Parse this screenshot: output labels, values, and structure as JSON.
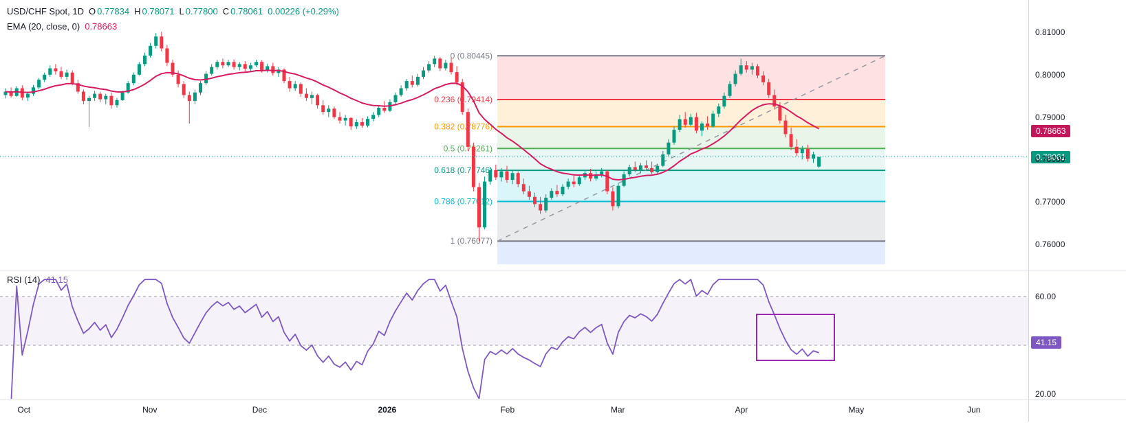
{
  "legend": {
    "title": "USD/CHF Spot, 1D",
    "o": {
      "k": "O",
      "v": "0.77834"
    },
    "h": {
      "k": "H",
      "v": "0.78071"
    },
    "l": {
      "k": "L",
      "v": "0.77800"
    },
    "c": {
      "k": "C",
      "v": "0.78061"
    },
    "change": "0.00226 (+0.29%)",
    "ema_title": "EMA (20, close, 0)",
    "ema_value": "0.78663",
    "rsi_title": "RSI (14)",
    "rsi_value": "41.15"
  },
  "colors": {
    "up": "#089981",
    "down": "#F23645",
    "ema_line": "#D81B60",
    "ema_badge": "#C2185B",
    "price_badge": "#089981",
    "rsi_line": "#7E57C2",
    "rsi_badge": "#7E57C2",
    "annotation_box": "#9C27B0",
    "trend_line": "#9598A1",
    "axis_text": "#131722",
    "band_fill": "rgba(126,87,194,0.08)"
  },
  "price_axis": {
    "ticks": [
      "0.81000",
      "0.80000",
      "0.79000",
      "0.78000",
      "0.77000",
      "0.76000"
    ],
    "ema_badge": "0.78663",
    "price_badge": "0.78061"
  },
  "rsi_axis": {
    "ticks": [
      {
        "label": "60.00",
        "v": 60
      },
      {
        "label": "20.00",
        "v": 20
      }
    ],
    "badge": "41.15",
    "badge_value": 41.15
  },
  "time_axis": {
    "labels": [
      {
        "label": "Oct",
        "i": 3.3
      },
      {
        "label": "Nov",
        "i": 25.9
      },
      {
        "label": "Dec",
        "i": 45.6
      },
      {
        "label": "2026",
        "i": 68.5,
        "bold": true
      },
      {
        "label": "Feb",
        "i": 90.1
      },
      {
        "label": "Mar",
        "i": 109.9
      },
      {
        "label": "Apr",
        "i": 132.1
      },
      {
        "label": "May",
        "i": 152.7
      },
      {
        "label": "Jun",
        "i": 173.8
      }
    ]
  },
  "fib": {
    "levels": [
      {
        "label": "0 (0.80445)",
        "value": 0,
        "price": 0.80445,
        "color": "#787B86",
        "fill_below": "rgba(242,54,69,0.15)"
      },
      {
        "label": "0.236 (0.79414)",
        "value": 0.236,
        "price": 0.79414,
        "color": "#F23645",
        "fill_below": "rgba(255,152,0,0.15)"
      },
      {
        "label": "0.382 (0.78776)",
        "value": 0.382,
        "price": 0.78776,
        "color": "#FF9800",
        "fill_below": "rgba(76,175,80,0.13)"
      },
      {
        "label": "0.5 (0.78261)",
        "value": 0.5,
        "price": 0.78261,
        "color": "#4CAF50",
        "fill_below": "rgba(8,153,129,0.09)"
      },
      {
        "label": "0.618 (0.77746)",
        "value": 0.618,
        "price": 0.77746,
        "color": "#089981",
        "fill_below": "rgba(0,188,212,0.14)"
      },
      {
        "label": "0.786 (0.77012)",
        "value": 0.786,
        "price": 0.77012,
        "color": "#00BCD4",
        "fill_below": "rgba(120,123,134,0.16)"
      },
      {
        "label": "1 (0.76077)",
        "value": 1,
        "price": 0.76077,
        "color": "#787B86",
        "fill_below": "rgba(41,98,255,0.13)"
      }
    ],
    "extension_bottom_price": 0.7553,
    "trend_line": {
      "style": "dashed",
      "from_price": 0.76077,
      "to_price": 0.80445
    }
  },
  "chart_data": [
    {
      "type": "candlestick",
      "title": "USD/CHF Spot, 1D",
      "ylim": [
        0.754,
        0.8176
      ],
      "y_ticks": [
        0.81,
        0.8,
        0.79,
        0.78,
        0.77,
        0.76
      ],
      "x_categories": [
        "Oct",
        "Nov",
        "Dec",
        "2026",
        "Feb",
        "Mar",
        "Apr",
        "May",
        "Jun"
      ],
      "grid": false,
      "last_price": 0.78061,
      "overlays": {
        "ema20": {
          "period": 20,
          "source": "close",
          "offset": 0,
          "last_value": 0.78663
        },
        "fib_levels": [
          0.80445,
          0.79414,
          0.78776,
          0.78261,
          0.77746,
          0.77012,
          0.76077
        ]
      },
      "candles": [
        [
          0.7952,
          0.7968,
          0.7944,
          0.796
        ],
        [
          0.796,
          0.797,
          0.7946,
          0.795
        ],
        [
          0.795,
          0.7973,
          0.7948,
          0.7968
        ],
        [
          0.7968,
          0.7975,
          0.794,
          0.7946
        ],
        [
          0.7946,
          0.796,
          0.7938,
          0.7955
        ],
        [
          0.7955,
          0.7976,
          0.795,
          0.797
        ],
        [
          0.797,
          0.7992,
          0.7965,
          0.7988
        ],
        [
          0.7988,
          0.8005,
          0.7982,
          0.8
        ],
        [
          0.8,
          0.8022,
          0.7995,
          0.8015
        ],
        [
          0.8015,
          0.8025,
          0.8,
          0.8008
        ],
        [
          0.8008,
          0.8018,
          0.799,
          0.7995
        ],
        [
          0.7995,
          0.8012,
          0.7988,
          0.8005
        ],
        [
          0.8005,
          0.801,
          0.7975,
          0.798
        ],
        [
          0.798,
          0.7988,
          0.7955,
          0.796
        ],
        [
          0.796,
          0.7965,
          0.793,
          0.7938
        ],
        [
          0.7938,
          0.795,
          0.7877,
          0.7945
        ],
        [
          0.7945,
          0.7962,
          0.7938,
          0.7955
        ],
        [
          0.7955,
          0.796,
          0.7935,
          0.7942
        ],
        [
          0.7942,
          0.7955,
          0.793,
          0.795
        ],
        [
          0.795,
          0.7958,
          0.792,
          0.7928
        ],
        [
          0.7928,
          0.7945,
          0.7922,
          0.794
        ],
        [
          0.794,
          0.7962,
          0.7938,
          0.7958
        ],
        [
          0.7958,
          0.7985,
          0.7955,
          0.798
        ],
        [
          0.798,
          0.8005,
          0.7975,
          0.8
        ],
        [
          0.8,
          0.803,
          0.7998,
          0.8025
        ],
        [
          0.8025,
          0.8052,
          0.802,
          0.8045
        ],
        [
          0.8045,
          0.8075,
          0.804,
          0.8068
        ],
        [
          0.8068,
          0.8098,
          0.8062,
          0.809
        ],
        [
          0.809,
          0.8101,
          0.8055,
          0.8062
        ],
        [
          0.8062,
          0.807,
          0.802,
          0.8028
        ],
        [
          0.8028,
          0.8035,
          0.7995,
          0.8
        ],
        [
          0.8,
          0.801,
          0.797,
          0.7978
        ],
        [
          0.7978,
          0.7985,
          0.7945,
          0.7952
        ],
        [
          0.7952,
          0.796,
          0.7885,
          0.7938
        ],
        [
          0.7938,
          0.7965,
          0.793,
          0.7958
        ],
        [
          0.7958,
          0.7985,
          0.7952,
          0.798
        ],
        [
          0.798,
          0.8008,
          0.7975,
          0.8002
        ],
        [
          0.8002,
          0.8025,
          0.7998,
          0.8018
        ],
        [
          0.8018,
          0.8035,
          0.8012,
          0.803
        ],
        [
          0.803,
          0.8038,
          0.8015,
          0.8022
        ],
        [
          0.8022,
          0.8035,
          0.8018,
          0.803
        ],
        [
          0.803,
          0.8036,
          0.8012,
          0.8018
        ],
        [
          0.8018,
          0.803,
          0.801,
          0.8025
        ],
        [
          0.8025,
          0.8032,
          0.8008,
          0.8014
        ],
        [
          0.8014,
          0.8028,
          0.8008,
          0.8022
        ],
        [
          0.8022,
          0.8035,
          0.8018,
          0.803
        ],
        [
          0.803,
          0.8034,
          0.8005,
          0.801
        ],
        [
          0.801,
          0.8026,
          0.8005,
          0.802
        ],
        [
          0.802,
          0.8028,
          0.7998,
          0.8004
        ],
        [
          0.8004,
          0.8018,
          0.7995,
          0.8012
        ],
        [
          0.8012,
          0.8015,
          0.798,
          0.7985
        ],
        [
          0.7985,
          0.7995,
          0.796,
          0.7968
        ],
        [
          0.7968,
          0.7985,
          0.7962,
          0.7978
        ],
        [
          0.7978,
          0.7982,
          0.7948,
          0.7955
        ],
        [
          0.7955,
          0.7968,
          0.7938,
          0.7945
        ],
        [
          0.7945,
          0.796,
          0.793,
          0.7952
        ],
        [
          0.7952,
          0.7955,
          0.792,
          0.7928
        ],
        [
          0.7928,
          0.794,
          0.7905,
          0.7912
        ],
        [
          0.7912,
          0.7928,
          0.79,
          0.792
        ],
        [
          0.792,
          0.7925,
          0.7895,
          0.79
        ],
        [
          0.79,
          0.7912,
          0.7885,
          0.7892
        ],
        [
          0.7892,
          0.7905,
          0.788,
          0.7898
        ],
        [
          0.7898,
          0.79,
          0.787,
          0.7878
        ],
        [
          0.7878,
          0.7895,
          0.7872,
          0.7888
        ],
        [
          0.7888,
          0.7898,
          0.7875,
          0.788
        ],
        [
          0.788,
          0.7902,
          0.7876,
          0.7896
        ],
        [
          0.7896,
          0.7912,
          0.789,
          0.7905
        ],
        [
          0.7905,
          0.7928,
          0.79,
          0.7922
        ],
        [
          0.7922,
          0.7938,
          0.791,
          0.7915
        ],
        [
          0.7915,
          0.7942,
          0.7912,
          0.7935
        ],
        [
          0.7935,
          0.7958,
          0.793,
          0.7952
        ],
        [
          0.7952,
          0.7975,
          0.7948,
          0.7968
        ],
        [
          0.7968,
          0.799,
          0.7962,
          0.7985
        ],
        [
          0.7985,
          0.7998,
          0.797,
          0.7976
        ],
        [
          0.7976,
          0.8002,
          0.7972,
          0.7995
        ],
        [
          0.7995,
          0.8018,
          0.799,
          0.801
        ],
        [
          0.801,
          0.8032,
          0.8005,
          0.8025
        ],
        [
          0.8025,
          0.80445,
          0.8018,
          0.8038
        ],
        [
          0.8038,
          0.8042,
          0.8008,
          0.8015
        ],
        [
          0.8015,
          0.8035,
          0.801,
          0.8028
        ],
        [
          0.8028,
          0.804,
          0.8,
          0.8006
        ],
        [
          0.8006,
          0.802,
          0.7975,
          0.7982
        ],
        [
          0.7982,
          0.799,
          0.7905,
          0.7912
        ],
        [
          0.7912,
          0.792,
          0.782,
          0.783
        ],
        [
          0.783,
          0.784,
          0.7725,
          0.7735
        ],
        [
          0.7735,
          0.7745,
          0.76077,
          0.764
        ],
        [
          0.764,
          0.776,
          0.7635,
          0.7748
        ],
        [
          0.7748,
          0.7782,
          0.774,
          0.7775
        ],
        [
          0.7775,
          0.7788,
          0.7752,
          0.7758
        ],
        [
          0.7758,
          0.778,
          0.7748,
          0.7772
        ],
        [
          0.7772,
          0.7785,
          0.7745,
          0.7752
        ],
        [
          0.7752,
          0.7775,
          0.7742,
          0.7768
        ],
        [
          0.7768,
          0.7772,
          0.7735,
          0.7742
        ],
        [
          0.7742,
          0.7755,
          0.7718,
          0.7725
        ],
        [
          0.7725,
          0.7738,
          0.7705,
          0.7712
        ],
        [
          0.7712,
          0.7722,
          0.7688,
          0.7695
        ],
        [
          0.7695,
          0.7712,
          0.7672,
          0.768
        ],
        [
          0.768,
          0.7718,
          0.7675,
          0.771
        ],
        [
          0.771,
          0.7732,
          0.7705,
          0.7726
        ],
        [
          0.7726,
          0.774,
          0.7712,
          0.7718
        ],
        [
          0.7718,
          0.7742,
          0.7714,
          0.7736
        ],
        [
          0.7736,
          0.7755,
          0.773,
          0.7748
        ],
        [
          0.7748,
          0.7762,
          0.7735,
          0.7742
        ],
        [
          0.7742,
          0.7765,
          0.7738,
          0.7758
        ],
        [
          0.7758,
          0.7775,
          0.7752,
          0.7768
        ],
        [
          0.7768,
          0.7778,
          0.7748,
          0.7755
        ],
        [
          0.7755,
          0.7772,
          0.775,
          0.7765
        ],
        [
          0.7765,
          0.778,
          0.7758,
          0.7772
        ],
        [
          0.7772,
          0.7775,
          0.7718,
          0.7725
        ],
        [
          0.7725,
          0.7735,
          0.768,
          0.769
        ],
        [
          0.769,
          0.7745,
          0.7685,
          0.7738
        ],
        [
          0.7738,
          0.7772,
          0.7735,
          0.7765
        ],
        [
          0.7765,
          0.7788,
          0.776,
          0.7782
        ],
        [
          0.7782,
          0.7795,
          0.777,
          0.7776
        ],
        [
          0.7776,
          0.7792,
          0.7768,
          0.7786
        ],
        [
          0.7786,
          0.7798,
          0.7775,
          0.778
        ],
        [
          0.778,
          0.7795,
          0.7765,
          0.777
        ],
        [
          0.777,
          0.779,
          0.7766,
          0.7785
        ],
        [
          0.7785,
          0.782,
          0.7782,
          0.7812
        ],
        [
          0.7812,
          0.7848,
          0.7808,
          0.784
        ],
        [
          0.784,
          0.7878,
          0.7835,
          0.787
        ],
        [
          0.787,
          0.7905,
          0.7865,
          0.7895
        ],
        [
          0.7895,
          0.7912,
          0.7875,
          0.7882
        ],
        [
          0.7882,
          0.7908,
          0.7878,
          0.79
        ],
        [
          0.79,
          0.791,
          0.7862,
          0.7868
        ],
        [
          0.7868,
          0.789,
          0.7855,
          0.7885
        ],
        [
          0.7885,
          0.7902,
          0.787,
          0.7878
        ],
        [
          0.7878,
          0.7915,
          0.7875,
          0.7908
        ],
        [
          0.7908,
          0.7932,
          0.79,
          0.7925
        ],
        [
          0.7925,
          0.7958,
          0.792,
          0.795
        ],
        [
          0.795,
          0.7985,
          0.7945,
          0.7978
        ],
        [
          0.7978,
          0.801,
          0.7972,
          0.8002
        ],
        [
          0.8002,
          0.8038,
          0.7998,
          0.8022
        ],
        [
          0.8022,
          0.8032,
          0.8005,
          0.8012
        ],
        [
          0.8012,
          0.8028,
          0.8,
          0.802
        ],
        [
          0.802,
          0.8025,
          0.7992,
          0.7998
        ],
        [
          0.7998,
          0.8008,
          0.7975,
          0.7982
        ],
        [
          0.7982,
          0.799,
          0.7945,
          0.7952
        ],
        [
          0.7952,
          0.7965,
          0.7918,
          0.7925
        ],
        [
          0.7925,
          0.7935,
          0.7885,
          0.7892
        ],
        [
          0.7892,
          0.7905,
          0.7852,
          0.786
        ],
        [
          0.786,
          0.7875,
          0.7822,
          0.783
        ],
        [
          0.783,
          0.7848,
          0.7808,
          0.7815
        ],
        [
          0.7815,
          0.7832,
          0.78,
          0.7825
        ],
        [
          0.7825,
          0.7835,
          0.7795,
          0.7802
        ],
        [
          0.7802,
          0.7818,
          0.7792,
          0.7812
        ],
        [
          0.77834,
          0.78071,
          0.778,
          0.78061
        ]
      ]
    },
    {
      "type": "line",
      "name": "RSI (14)",
      "source": "computed from candle closes, Wilder period 14",
      "current_value": 41.15,
      "dashed_levels": [
        60,
        40
      ],
      "y_ticks": [
        60,
        20
      ],
      "ylim": [
        16,
        70
      ],
      "legend_position": "top-left",
      "annotation_box": {
        "shape": "rectangle",
        "color": "#9C27B0"
      }
    }
  ]
}
